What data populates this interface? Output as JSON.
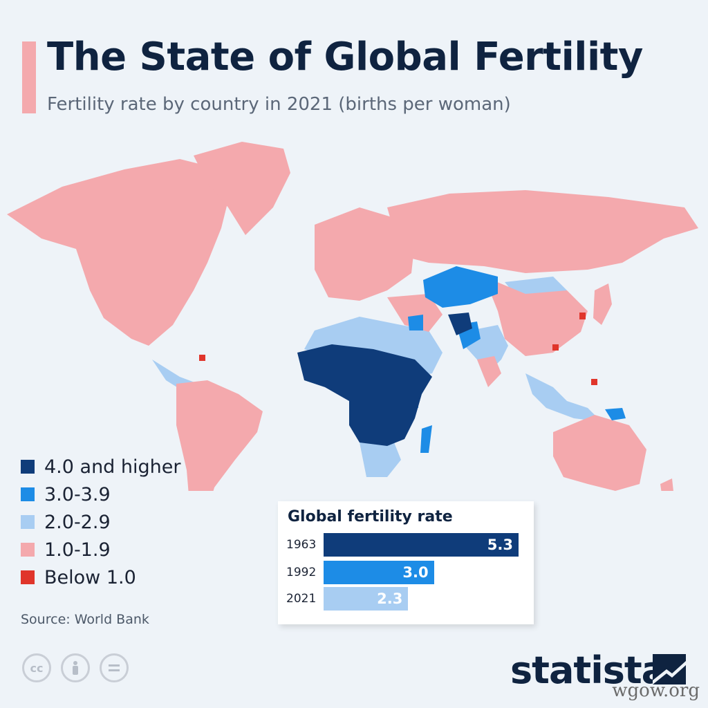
{
  "header": {
    "title": "The State of Global Fertility",
    "subtitle": "Fertility rate by country in 2021 (births per woman)"
  },
  "legend": [
    {
      "label": "4.0 and higher",
      "color": "#0f3c7a"
    },
    {
      "label": "3.0-3.9",
      "color": "#1d8ce6"
    },
    {
      "label": "2.0-2.9",
      "color": "#a8cdf2"
    },
    {
      "label": "1.0-1.9",
      "color": "#f4a9ad"
    },
    {
      "label": "Below 1.0",
      "color": "#e0352b"
    }
  ],
  "map": {
    "highlighted_regions": [
      {
        "region": "Sub-Saharan Africa",
        "category": "4.0 and higher"
      },
      {
        "region": "Afghanistan",
        "category": "4.0 and higher"
      },
      {
        "region": "Central Asia",
        "category": "3.0-3.9"
      },
      {
        "region": "Pakistan",
        "category": "3.0-3.9"
      },
      {
        "region": "South Korea",
        "category": "Below 1.0"
      }
    ]
  },
  "global_rate": {
    "title": "Global fertility rate",
    "rows": [
      {
        "year": "1963",
        "value": 5.3,
        "label": "5.3",
        "color": "#0f3c7a"
      },
      {
        "year": "1992",
        "value": 3.0,
        "label": "3.0",
        "color": "#1d8ce6"
      },
      {
        "year": "2021",
        "value": 2.3,
        "label": "2.3",
        "color": "#a8cdf2"
      }
    ]
  },
  "source": "Source: World Bank",
  "license_icons": [
    "cc-icon",
    "attribution-icon",
    "no-derivatives-icon"
  ],
  "brand": "statista",
  "watermark": "wgow.org"
}
